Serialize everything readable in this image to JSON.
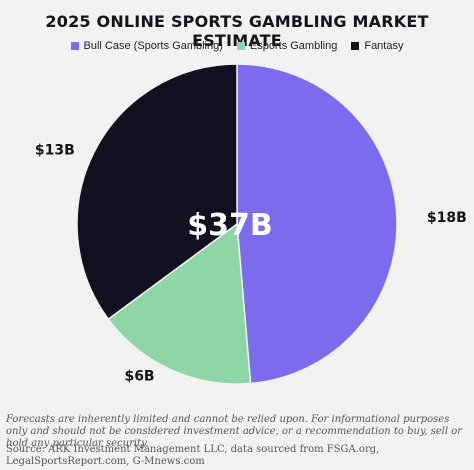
{
  "chart_data": {
    "type": "pie",
    "title": "2025 ONLINE SPORTS GAMBLING MARKET ESTIMATE",
    "center_label": "$37B",
    "slices": [
      {
        "name": "Bull Case (Sports Gambling)",
        "value": 18,
        "label": "$18B",
        "color": "#7b6cee"
      },
      {
        "name": "Esports Gambling",
        "value": 6,
        "label": "$6B",
        "color": "#8fd6a6"
      },
      {
        "name": "Fantasy",
        "value": 13,
        "label": "$13B",
        "color": "#11101f"
      }
    ],
    "legend_position": "top"
  },
  "footnote": "Forecasts are inherently limited and cannot be relied upon. For informational purposes only and should not be considered investment advice, or a recommendation to buy, sell or hold any particular security.",
  "source": "Source: ARK Investment Management LLC, data sourced from FSGA.org, LegalSportsReport.com, G-Mnews.com"
}
